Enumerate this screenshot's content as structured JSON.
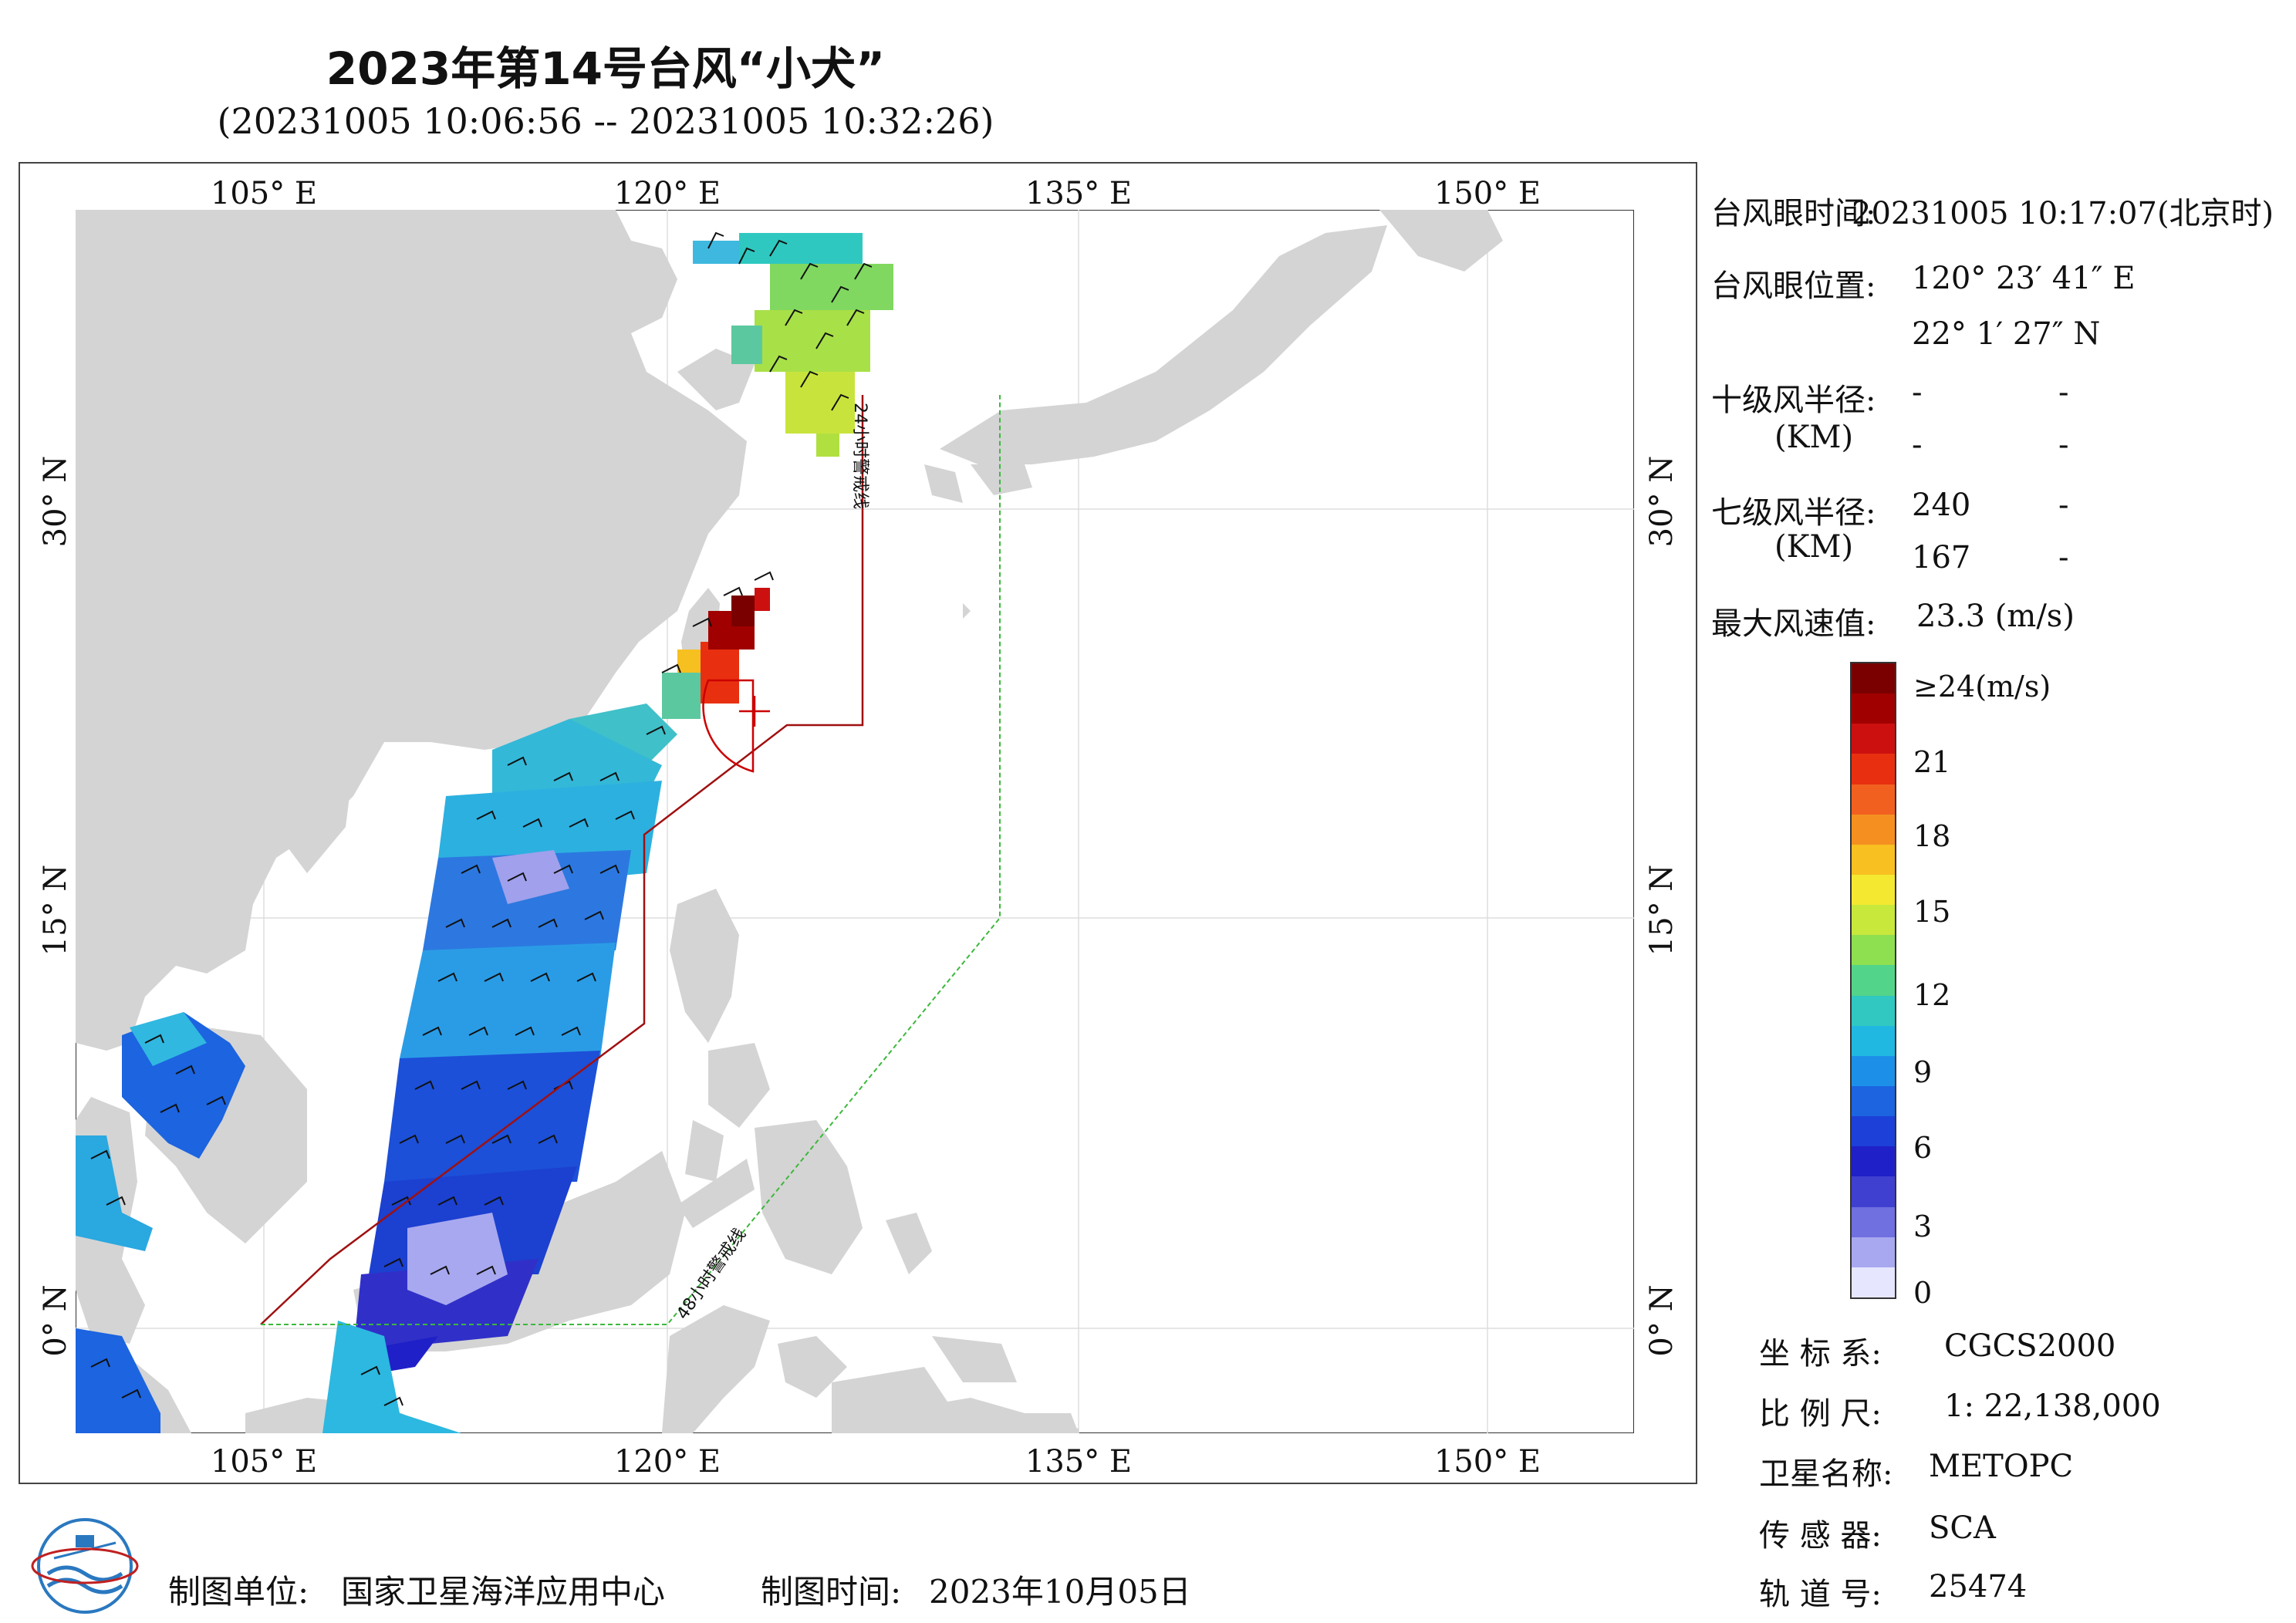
{
  "title": "2023年第14号台风“小犬”",
  "subtitle": "(20231005 10:06:56 -- 20231005 10:32:26)",
  "axes": {
    "lon_ticks": [
      "105° E",
      "120° E",
      "135° E",
      "150° E"
    ],
    "lat_ticks": [
      "30° N",
      "15° N",
      "0° N"
    ]
  },
  "warning_lines": {
    "line24": "24小时警戒线",
    "line48": "48小时警戒线"
  },
  "info": {
    "eye_time_label": "台风眼时间:",
    "eye_time_value": "20231005 10:17:07(北京时)",
    "eye_pos_label": "台风眼位置:",
    "eye_lon": "120° 23′ 41″ E",
    "eye_lat": "22° 1′ 27″ N",
    "r10_label": "十级风半径:",
    "r10_unit": "(KM)",
    "r10_a1": "-",
    "r10_a2": "-",
    "r10_b1": "-",
    "r10_b2": "-",
    "r7_label": "七级风半径:",
    "r7_unit": "(KM)",
    "r7_a1": "240",
    "r7_a2": "-",
    "r7_b1": "167",
    "r7_b2": "-",
    "max_wind_label": "最大风速值:",
    "max_wind_value": "23.3  (m/s)"
  },
  "colorbar": {
    "labels": [
      "≥24(m/s)",
      "21",
      "18",
      "15",
      "12",
      "9",
      "6",
      "3",
      "0"
    ],
    "colors": [
      "#7a0000",
      "#a00000",
      "#cc1010",
      "#e83010",
      "#f26020",
      "#f59020",
      "#f8c020",
      "#f4e830",
      "#c8e83c",
      "#8ee050",
      "#52d48a",
      "#30c8c0",
      "#20b8e0",
      "#1c90e8",
      "#1c64e0",
      "#1c40d8",
      "#2020c8",
      "#4040d0",
      "#7070e0",
      "#a8a8f0",
      "#e6e6ff"
    ]
  },
  "meta": {
    "crs_label": "坐 标 系:",
    "crs_value": "CGCS2000",
    "scale_label": "比 例 尺:",
    "scale_value": "1: 22,138,000",
    "sat_label": "卫星名称:",
    "sat_value": "METOPC",
    "sensor_label": "传 感 器:",
    "sensor_value": "SCA",
    "orbit_label": "轨 道 号:",
    "orbit_value": "25474"
  },
  "footer": {
    "org_label": "制图单位:",
    "org_value": "国家卫星海洋应用中心",
    "date_label": "制图时间:",
    "date_value": "2023年10月05日"
  }
}
